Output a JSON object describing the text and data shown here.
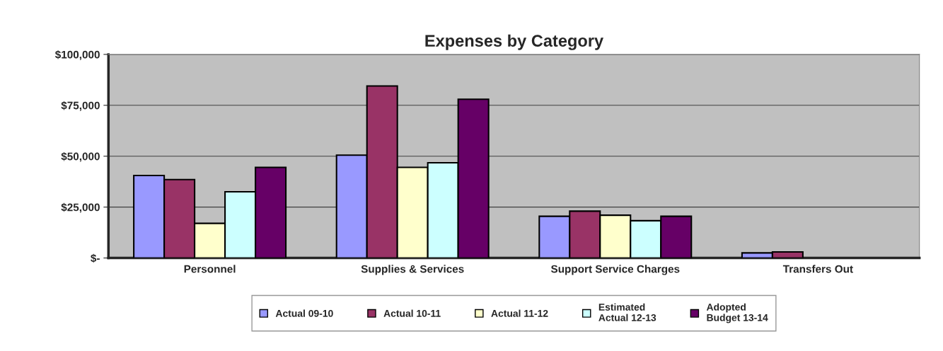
{
  "chart_data": {
    "type": "bar",
    "title": "Expenses by Category",
    "categories": [
      "Personnel",
      "Supplies & Services",
      "Support Service Charges",
      "Transfers Out"
    ],
    "series": [
      {
        "name": "Actual 09-10",
        "color": "#9999ff",
        "values": [
          40500,
          50500,
          20500,
          2500
        ]
      },
      {
        "name": "Actual 10-11",
        "color": "#993366",
        "values": [
          38500,
          84500,
          23000,
          3000
        ]
      },
      {
        "name": "Actual 11-12",
        "color": "#ffffcc",
        "values": [
          17000,
          44500,
          21000,
          null
        ]
      },
      {
        "name": "Estimated\nActual 12-13",
        "color": "#ccffff",
        "values": [
          32500,
          46800,
          18300,
          null
        ]
      },
      {
        "name": "Adopted\nBudget 13-14",
        "color": "#660066",
        "values": [
          44500,
          78000,
          20500,
          null
        ]
      }
    ],
    "ylim": [
      0,
      100000
    ],
    "yticks": [
      {
        "value": 0,
        "label": "$-"
      },
      {
        "value": 25000,
        "label": "$25,000"
      },
      {
        "value": 50000,
        "label": "$50,000"
      },
      {
        "value": 75000,
        "label": "$75,000"
      },
      {
        "value": 100000,
        "label": "$100,000"
      }
    ],
    "grid": "y",
    "legend": "bottom"
  }
}
